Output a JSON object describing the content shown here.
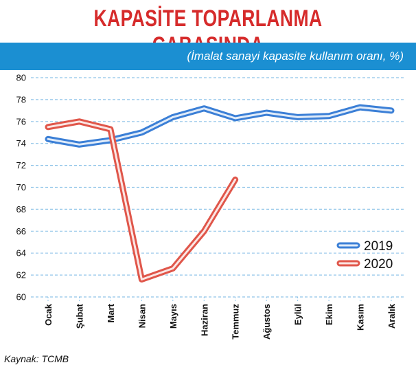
{
  "title": "KAPASİTE TOPARLANMA ÇABASINDA",
  "subtitle": "(İmalat sanayi kapasite kullanım oranı, %)",
  "source": "Kaynak: TCMB",
  "colors": {
    "band": "#1b8fd2",
    "title": "#d62b2b",
    "series_2019": "#3b7fd6",
    "series_2020": "#e0564a",
    "grid": "#8fc4e8"
  },
  "chart_data": {
    "type": "line",
    "title": "KAPASİTE TOPARLANMA ÇABASINDA",
    "ylabel": "İmalat sanayi kapasite kullanım oranı, %",
    "categories": [
      "Ocak",
      "Şubat",
      "Mart",
      "Nisan",
      "Mayıs",
      "Haziran",
      "Temmuz",
      "Ağustos",
      "Eylül",
      "Ekim",
      "Kasım",
      "Aralık"
    ],
    "ylim": [
      60,
      80
    ],
    "yticks": [
      80,
      78,
      76,
      74,
      72,
      70,
      68,
      66,
      64,
      62,
      60
    ],
    "grid": true,
    "legend_position": "right",
    "series": [
      {
        "name": "2019",
        "values": [
          74.4,
          73.9,
          74.3,
          75.0,
          76.4,
          77.2,
          76.3,
          76.8,
          76.4,
          76.5,
          77.3,
          77.0
        ]
      },
      {
        "name": "2020",
        "values": [
          75.5,
          76.0,
          75.3,
          61.6,
          62.6,
          66.0,
          70.7,
          null,
          null,
          null,
          null,
          null
        ]
      }
    ]
  }
}
